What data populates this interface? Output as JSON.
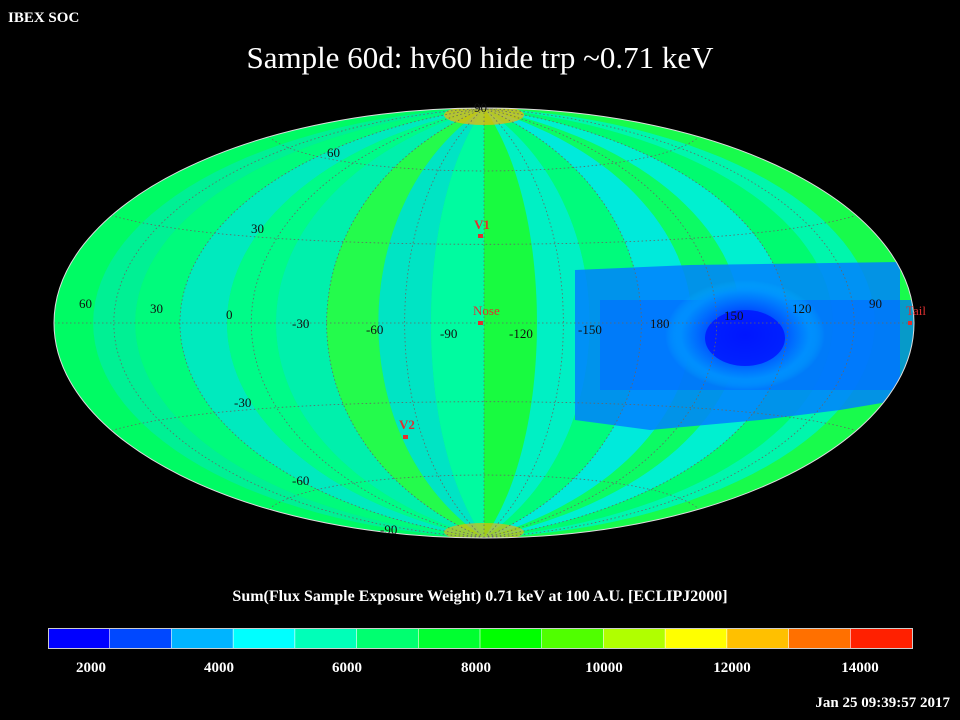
{
  "header": {
    "org": "IBEX SOC",
    "title": "Sample 60d: hv60 hide trp ~0.71 keV"
  },
  "map": {
    "projection": "Hammer-Aitoff",
    "frame": "ECLIPJ2000",
    "grid": "dotted",
    "latitude_labels": [
      "60",
      "30",
      "0",
      "-30",
      "-60",
      "-90",
      "30",
      "-30",
      "90",
      "60"
    ],
    "longitude_labels": [
      "60",
      "30",
      "0",
      "-30",
      "-60",
      "-90",
      "-120",
      "-150",
      "180",
      "150",
      "120",
      "90"
    ],
    "markers": [
      {
        "label": "V1",
        "color": "#e03030"
      },
      {
        "label": "Nose",
        "color": "#e03030"
      },
      {
        "label": "V2",
        "color": "#e03030"
      },
      {
        "label": "Tail",
        "color": "#e03030"
      }
    ]
  },
  "colorbar": {
    "title": "Sum(Flux Sample Exposure Weight)  0.71 keV at 100 A.U. [ECLIPJ2000]",
    "range": [
      1000,
      15000
    ],
    "ticks": [
      "2000",
      "4000",
      "6000",
      "8000",
      "10000",
      "12000",
      "14000"
    ],
    "colors": [
      "#0000ff",
      "#0048ff",
      "#00b4ff",
      "#00ffff",
      "#00ffb8",
      "#00ff70",
      "#00ff30",
      "#00ff00",
      "#50ff00",
      "#b0ff00",
      "#ffff00",
      "#ffc000",
      "#ff7000",
      "#ff2000"
    ]
  },
  "footer": {
    "timestamp": "Jan 25 09:39:57 2017"
  }
}
